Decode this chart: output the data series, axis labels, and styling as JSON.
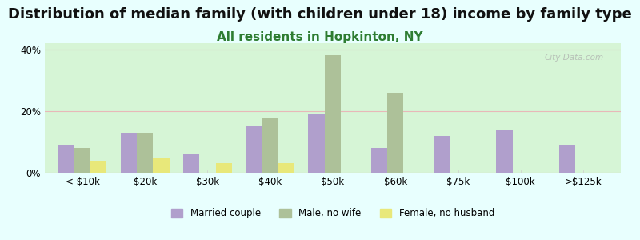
{
  "title": "Distribution of median family (with children under 18) income by family type",
  "subtitle": "All residents in Hopkinton, NY",
  "categories": [
    "< $10k",
    "$20k",
    "$30k",
    "$40k",
    "$50k",
    "$60k",
    "$75k",
    "$100k",
    ">$125k"
  ],
  "series": {
    "Married couple": [
      9,
      13,
      6,
      15,
      19,
      8,
      12,
      14,
      9
    ],
    "Male, no wife": [
      8,
      13,
      0,
      18,
      38,
      26,
      0,
      0,
      0
    ],
    "Female, no husband": [
      4,
      5,
      3,
      3,
      0,
      0,
      0,
      0,
      0
    ]
  },
  "colors": {
    "Married couple": "#b09fcc",
    "Male, no wife": "#adc199",
    "Female, no husband": "#e8e87a"
  },
  "ylim": [
    0,
    42
  ],
  "yticks": [
    0,
    20,
    40
  ],
  "yticklabels": [
    "0%",
    "20%",
    "40%"
  ],
  "background_color": "#e8fffe",
  "plot_bg_top": "#d6f5d6",
  "plot_bg_bottom": "#f5fff5",
  "title_fontsize": 13,
  "subtitle_fontsize": 11,
  "subtitle_color": "#2e7d32",
  "watermark": "City-Data.com",
  "bar_width": 0.26,
  "grid_color": "#e8b8b8",
  "grid_linewidth": 0.8
}
